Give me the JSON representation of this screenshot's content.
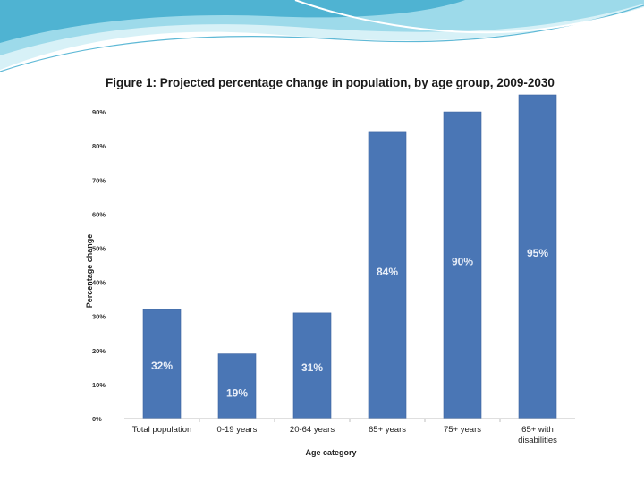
{
  "colors": {
    "bar": "#4a76b5",
    "bar_edge": "#3d64a0",
    "wave_light": "#cfeff6",
    "wave_mid": "#8fd3e6",
    "wave_dark": "#3fa8c8"
  },
  "chart_data": {
    "type": "bar",
    "title": "Figure 1: Projected percentage change in population, by age group, 2009-2030",
    "xlabel": "Age category",
    "ylabel": "Percentage change",
    "ylim": [
      0,
      95
    ],
    "yticks": [
      "0%",
      "10%",
      "20%",
      "30%",
      "40%",
      "50%",
      "60%",
      "70%",
      "80%",
      "90%"
    ],
    "ytick_values": [
      0,
      10,
      20,
      30,
      40,
      50,
      60,
      70,
      80,
      90
    ],
    "categories": [
      "Total population",
      "0-19 years",
      "20-64 years",
      "65+ years",
      "75+ years",
      "65+ with disabilities"
    ],
    "values": [
      32,
      19,
      31,
      84,
      90,
      95
    ],
    "data_labels": [
      "32%",
      "19%",
      "31%",
      "84%",
      "90%",
      "95%"
    ],
    "grid": false,
    "legend": "none"
  }
}
